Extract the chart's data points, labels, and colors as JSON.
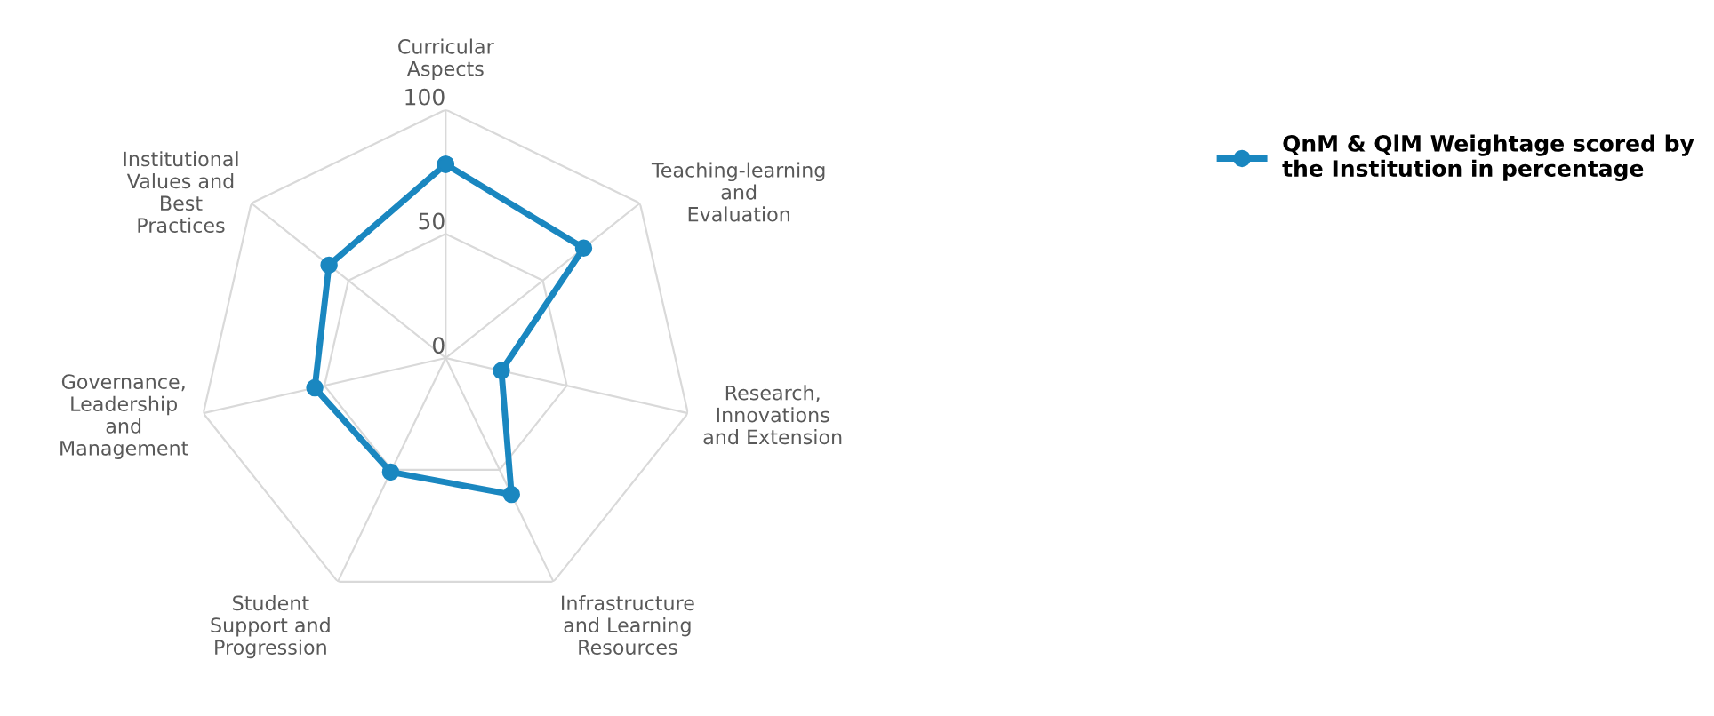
{
  "chart_data": {
    "type": "radar",
    "categories": [
      "Curricular Aspects",
      "Teaching-learning and Evaluation",
      "Research, Innovations and Extension",
      "Infrastructure and Learning Resources",
      "Student Support and Progression",
      "Governance, Leadership and Management",
      "Institutional Values and Best Practices"
    ],
    "series": [
      {
        "name": "QnM & QlM Weightage scored by the Institution in percentage",
        "color": "#1a87c0",
        "values": [
          78,
          71,
          23,
          61,
          51,
          54,
          60
        ]
      }
    ],
    "ylim": [
      0,
      100
    ],
    "yticks": [
      0,
      50,
      100
    ],
    "grid": true,
    "legend": "top right",
    "marker": "circle",
    "line_style": "solid"
  }
}
